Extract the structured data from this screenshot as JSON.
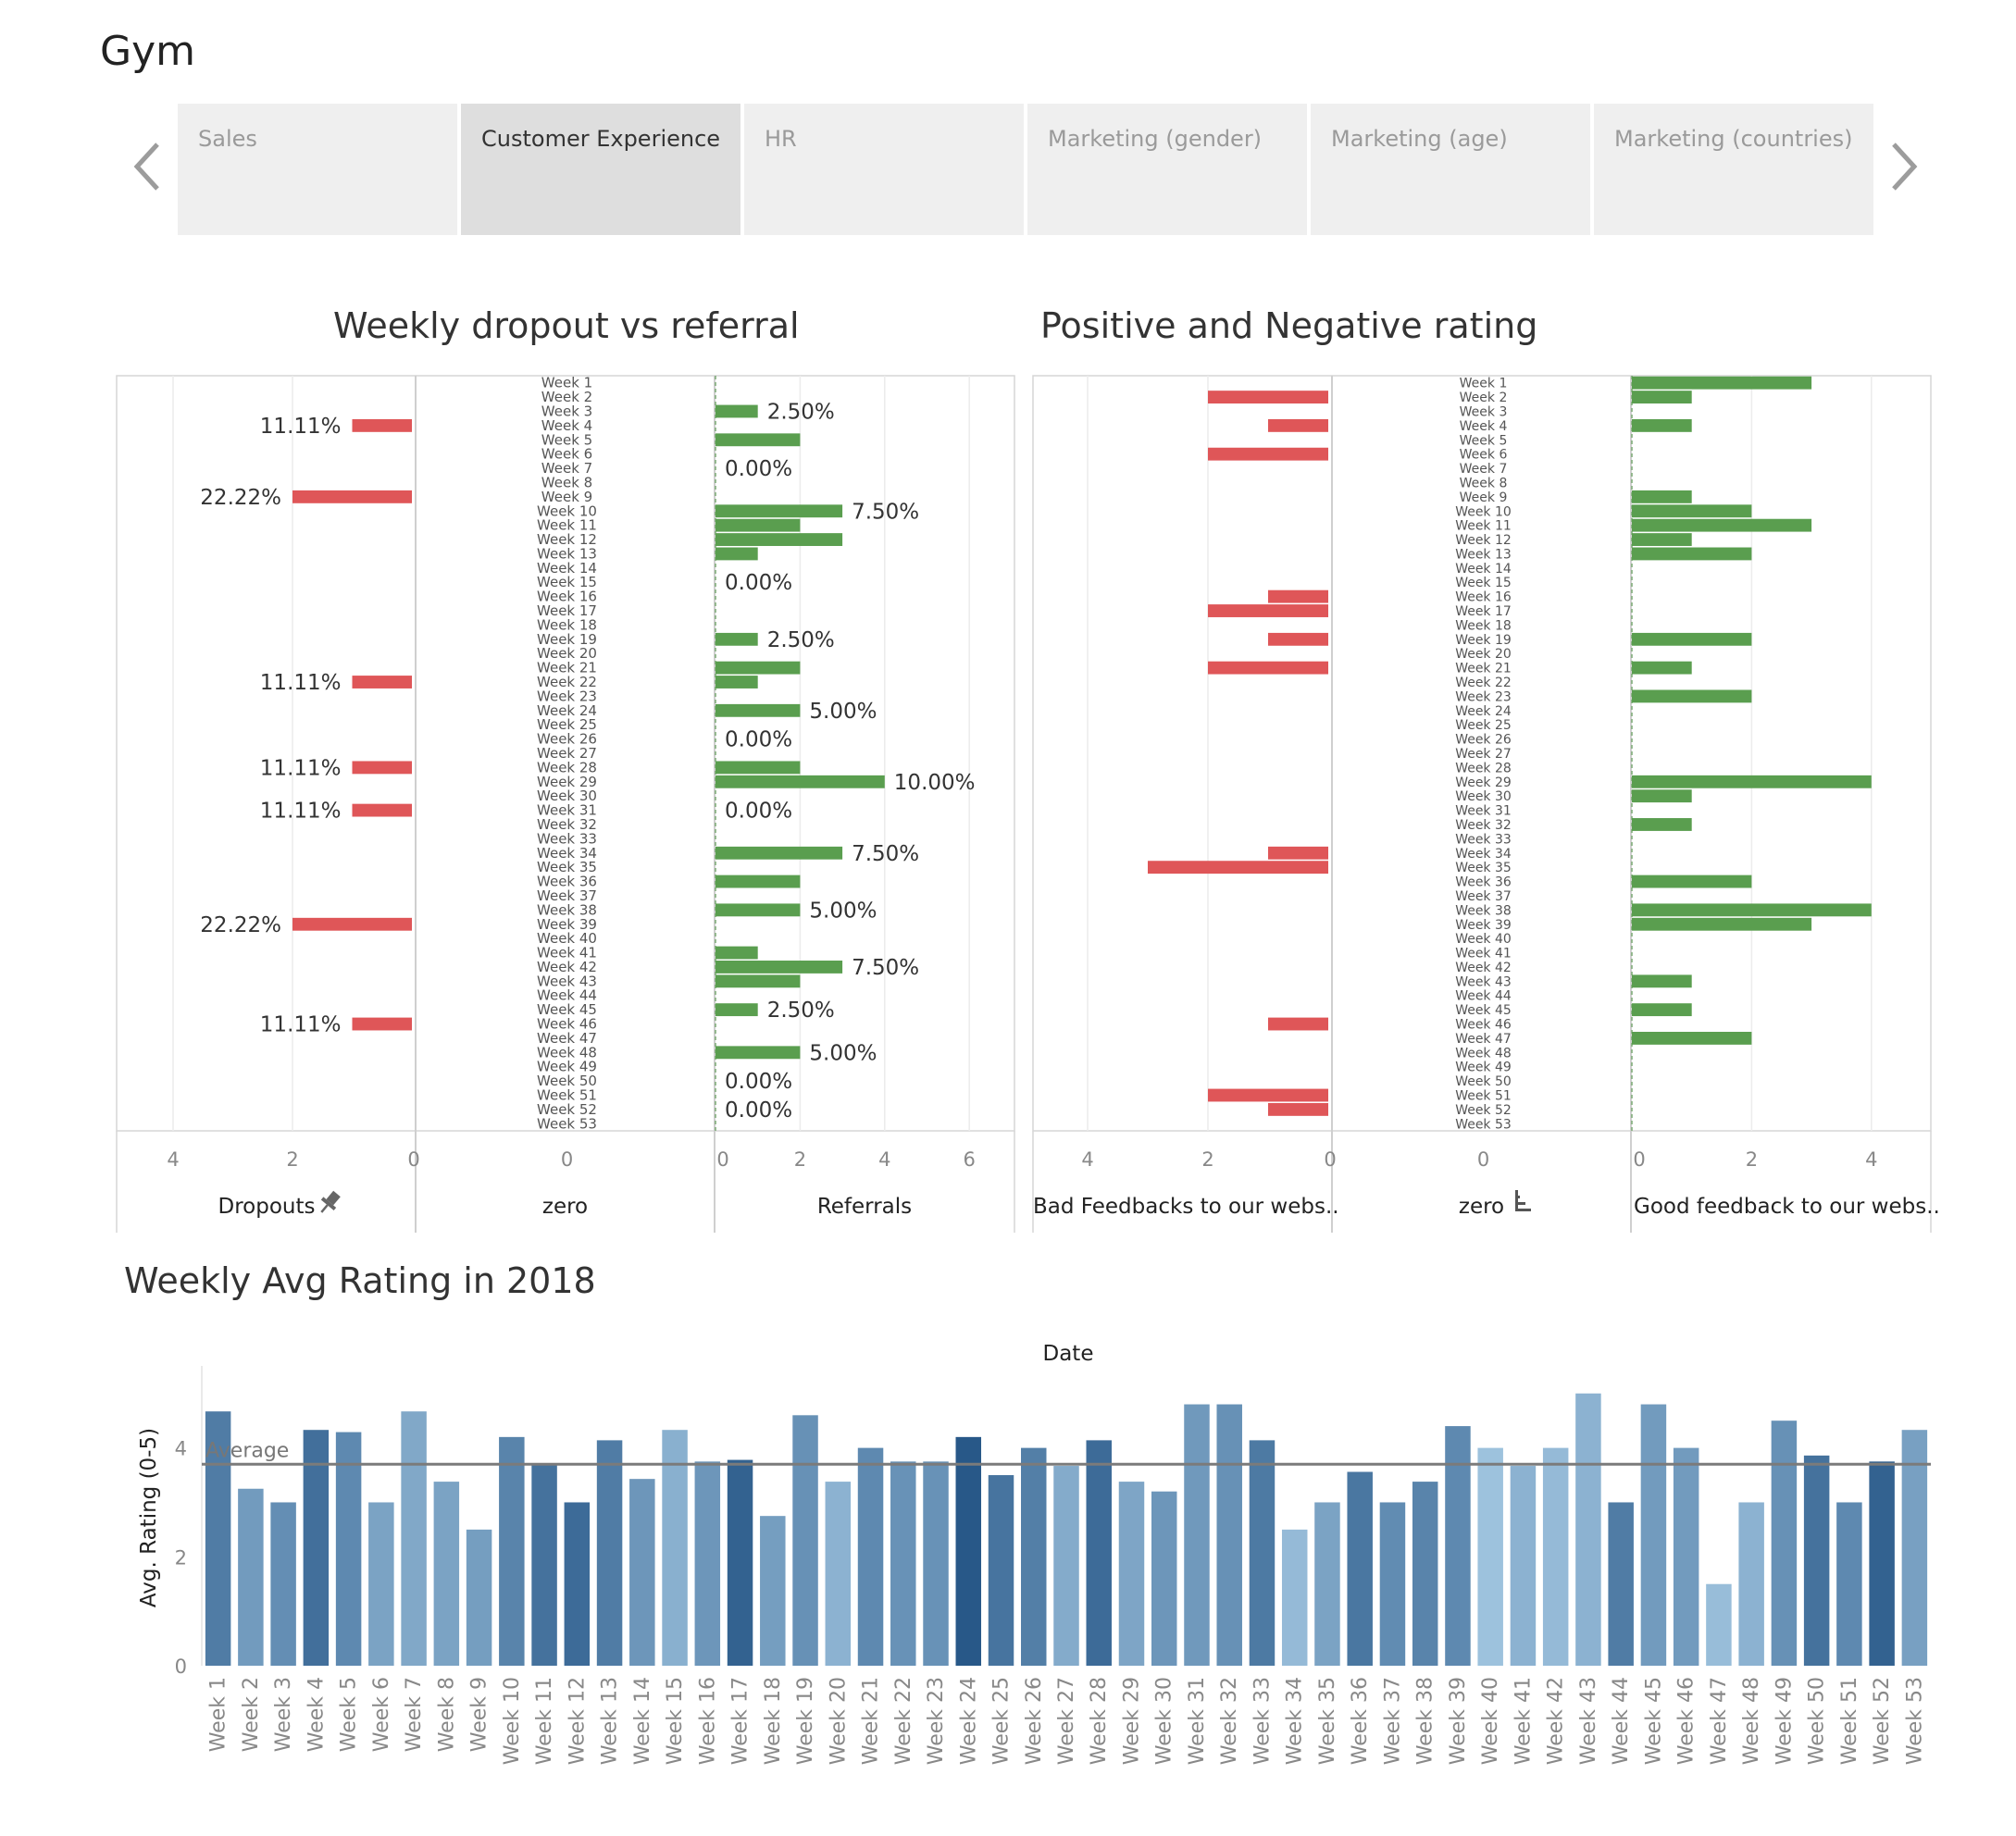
{
  "app": {
    "title": "Gym"
  },
  "tabs": [
    {
      "label": "Sales",
      "active": false
    },
    {
      "label": "Customer Experience",
      "active": true
    },
    {
      "label": "HR",
      "active": false
    },
    {
      "label": "Marketing (gender)",
      "active": false
    },
    {
      "label": "Marketing (age)",
      "active": false
    },
    {
      "label": "Marketing (countries)",
      "active": false
    }
  ],
  "nav": {
    "prev_icon": "chevron-left-icon",
    "next_icon": "chevron-right-icon"
  },
  "colors": {
    "negative": "#df5658",
    "positive": "#5a9e4f",
    "average_line": "#7b7b7b"
  },
  "chart_data": [
    {
      "type": "bar",
      "orientation": "horizontal",
      "title": "Weekly dropout vs referral",
      "categories": [
        "Week 1",
        "Week 2",
        "Week 3",
        "Week 4",
        "Week 5",
        "Week 6",
        "Week 7",
        "Week 8",
        "Week 9",
        "Week 10",
        "Week 11",
        "Week 12",
        "Week 13",
        "Week 14",
        "Week 15",
        "Week 16",
        "Week 17",
        "Week 18",
        "Week 19",
        "Week 20",
        "Week 21",
        "Week 22",
        "Week 23",
        "Week 24",
        "Week 25",
        "Week 26",
        "Week 27",
        "Week 28",
        "Week 29",
        "Week 30",
        "Week 31",
        "Week 32",
        "Week 33",
        "Week 34",
        "Week 35",
        "Week 36",
        "Week 37",
        "Week 38",
        "Week 39",
        "Week 40",
        "Week 41",
        "Week 42",
        "Week 43",
        "Week 44",
        "Week 45",
        "Week 46",
        "Week 47",
        "Week 48",
        "Week 49",
        "Week 50",
        "Week 51",
        "Week 52",
        "Week 53"
      ],
      "panes": [
        {
          "label": "Dropouts",
          "icon": "pin-icon",
          "direction": "left",
          "domain": [
            0,
            4.5
          ],
          "ticks": [
            4,
            2,
            0
          ],
          "values": {
            "Week 4": 1,
            "Week 9": 2,
            "Week 22": 1,
            "Week 28": 1,
            "Week 31": 1,
            "Week 39": 2,
            "Week 46": 1
          },
          "labels": {
            "Week 4": "11.11%",
            "Week 9": "22.22%",
            "Week 22": "11.11%",
            "Week 28": "11.11%",
            "Week 31": "11.11%",
            "Week 39": "22.22%",
            "Week 46": "11.11%"
          }
        },
        {
          "label": "zero",
          "ticks": [
            0
          ]
        },
        {
          "label": "Referrals",
          "direction": "right",
          "domain": [
            0,
            7
          ],
          "ticks": [
            0,
            2,
            4,
            6
          ],
          "values": {
            "Week 3": 1,
            "Week 5": 2,
            "Week 10": 3,
            "Week 11": 2,
            "Week 12": 3,
            "Week 13": 1,
            "Week 19": 1,
            "Week 21": 2,
            "Week 22": 1,
            "Week 24": 2,
            "Week 28": 2,
            "Week 29": 4,
            "Week 34": 3,
            "Week 36": 2,
            "Week 38": 2,
            "Week 41": 1,
            "Week 42": 3,
            "Week 43": 2,
            "Week 45": 1,
            "Week 48": 2
          },
          "labels": {
            "Week 3": "2.50%",
            "Week 7": "0.00%",
            "Week 10": "7.50%",
            "Week 15": "0.00%",
            "Week 19": "2.50%",
            "Week 24": "5.00%",
            "Week 26": "0.00%",
            "Week 29": "10.00%",
            "Week 31": "0.00%",
            "Week 34": "7.50%",
            "Week 38": "5.00%",
            "Week 42": "7.50%",
            "Week 45": "2.50%",
            "Week 48": "5.00%",
            "Week 50": "0.00%",
            "Week 52": "0.00%"
          }
        }
      ]
    },
    {
      "type": "bar",
      "orientation": "horizontal",
      "title": "Positive and Negative rating",
      "categories": [
        "Week 1",
        "Week 2",
        "Week 3",
        "Week 4",
        "Week 5",
        "Week 6",
        "Week 7",
        "Week 8",
        "Week 9",
        "Week 10",
        "Week 11",
        "Week 12",
        "Week 13",
        "Week 14",
        "Week 15",
        "Week 16",
        "Week 17",
        "Week 18",
        "Week 19",
        "Week 20",
        "Week 21",
        "Week 22",
        "Week 23",
        "Week 24",
        "Week 25",
        "Week 26",
        "Week 27",
        "Week 28",
        "Week 29",
        "Week 30",
        "Week 31",
        "Week 32",
        "Week 33",
        "Week 34",
        "Week 35",
        "Week 36",
        "Week 37",
        "Week 38",
        "Week 39",
        "Week 40",
        "Week 41",
        "Week 42",
        "Week 43",
        "Week 44",
        "Week 45",
        "Week 46",
        "Week 47",
        "Week 48",
        "Week 49",
        "Week 50",
        "Week 51",
        "Week 52",
        "Week 53"
      ],
      "panes": [
        {
          "label": "Bad Feedbacks to our webs..",
          "direction": "left",
          "domain": [
            0,
            4.5
          ],
          "ticks": [
            4,
            2,
            0
          ],
          "values": {
            "Week 2": 2,
            "Week 4": 1,
            "Week 6": 2,
            "Week 16": 1,
            "Week 17": 2,
            "Week 19": 1,
            "Week 21": 2,
            "Week 34": 1,
            "Week 35": 3,
            "Week 46": 1,
            "Week 51": 2,
            "Week 52": 1
          }
        },
        {
          "label": "zero",
          "icon": "sort-icon",
          "ticks": [
            0
          ]
        },
        {
          "label": "Good feedback to our webs..",
          "direction": "right",
          "domain": [
            0,
            5
          ],
          "ticks": [
            0,
            2,
            4
          ],
          "values": {
            "Week 1": 3,
            "Week 2": 1,
            "Week 4": 1,
            "Week 9": 1,
            "Week 10": 2,
            "Week 11": 3,
            "Week 12": 1,
            "Week 13": 2,
            "Week 19": 2,
            "Week 21": 1,
            "Week 23": 2,
            "Week 29": 4,
            "Week 30": 1,
            "Week 32": 1,
            "Week 36": 2,
            "Week 38": 4,
            "Week 39": 3,
            "Week 43": 1,
            "Week 45": 1,
            "Week 47": 2
          }
        }
      ]
    },
    {
      "type": "bar",
      "title": "Weekly Avg Rating in 2018",
      "xlabel": "Date",
      "ylabel": "Avg. Rating (0-5)",
      "ylim": [
        0,
        5.2
      ],
      "yticks": [
        0,
        2,
        4
      ],
      "categories": [
        "Week 1",
        "Week 2",
        "Week 3",
        "Week 4",
        "Week 5",
        "Week 6",
        "Week 7",
        "Week 8",
        "Week 9",
        "Week 10",
        "Week 11",
        "Week 12",
        "Week 13",
        "Week 14",
        "Week 15",
        "Week 16",
        "Week 17",
        "Week 18",
        "Week 19",
        "Week 20",
        "Week 21",
        "Week 22",
        "Week 23",
        "Week 24",
        "Week 25",
        "Week 26",
        "Week 27",
        "Week 28",
        "Week 29",
        "Week 30",
        "Week 31",
        "Week 32",
        "Week 33",
        "Week 34",
        "Week 35",
        "Week 36",
        "Week 37",
        "Week 38",
        "Week 39",
        "Week 40",
        "Week 41",
        "Week 42",
        "Week 43",
        "Week 44",
        "Week 45",
        "Week 46",
        "Week 47",
        "Week 48",
        "Week 49",
        "Week 50",
        "Week 51",
        "Week 52",
        "Week 53"
      ],
      "values": [
        4.67,
        3.25,
        3.0,
        4.33,
        4.29,
        3.0,
        4.67,
        3.38,
        2.5,
        4.2,
        3.71,
        3.0,
        4.14,
        3.43,
        4.33,
        3.75,
        3.78,
        2.75,
        4.6,
        3.38,
        4.0,
        3.75,
        3.75,
        4.2,
        3.5,
        4.0,
        3.67,
        4.14,
        3.38,
        3.2,
        4.8,
        4.8,
        4.14,
        2.5,
        3.0,
        3.56,
        3.0,
        3.38,
        4.4,
        4.0,
        3.67,
        4.0,
        5.0,
        3.0,
        4.8,
        4.0,
        1.5,
        3.0,
        4.5,
        3.86,
        3.0,
        3.75,
        4.33
      ],
      "color_intensity": [
        0.72,
        0.48,
        0.58,
        0.82,
        0.62,
        0.42,
        0.38,
        0.42,
        0.46,
        0.66,
        0.8,
        0.85,
        0.72,
        0.52,
        0.32,
        0.52,
        0.92,
        0.46,
        0.56,
        0.3,
        0.62,
        0.55,
        0.55,
        1.0,
        0.78,
        0.7,
        0.36,
        0.85,
        0.4,
        0.52,
        0.5,
        0.56,
        0.74,
        0.24,
        0.42,
        0.76,
        0.6,
        0.66,
        0.62,
        0.18,
        0.3,
        0.24,
        0.3,
        0.72,
        0.48,
        0.48,
        0.22,
        0.3,
        0.56,
        0.8,
        0.62,
        0.92,
        0.44
      ],
      "reference_line": {
        "label": "Average",
        "value": 3.7
      }
    }
  ]
}
